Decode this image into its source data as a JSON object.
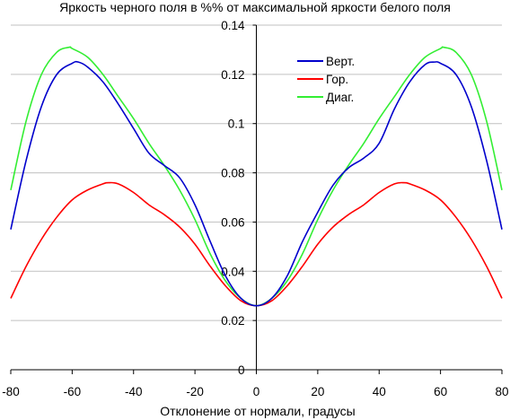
{
  "chart_data": {
    "type": "line",
    "title": "Яркость черного поля в %% от максимальной яркости белого поля",
    "xlabel": "Отклонение от нормали, градусы",
    "ylabel": "",
    "xlim": [
      -80,
      80
    ],
    "ylim": [
      0,
      0.14
    ],
    "x_ticks": [
      "-80",
      "-60",
      "-40",
      "-20",
      "0",
      "20",
      "40",
      "60",
      "80"
    ],
    "y_ticks": [
      "0",
      "0.02",
      "0.04",
      "0.06",
      "0.08",
      "0.1",
      "0.12",
      "0.14"
    ],
    "grid": "horizontal",
    "legend_position": "top-right",
    "series": [
      {
        "name": "Верт.",
        "color": "#0000cc",
        "x": [
          -80,
          -75,
          -70,
          -65,
          -60,
          -58,
          -55,
          -50,
          -45,
          -40,
          -35,
          -30,
          -25,
          -20,
          -15,
          -10,
          -5,
          0,
          5,
          10,
          15,
          20,
          25,
          30,
          35,
          40,
          45,
          50,
          55,
          58,
          60,
          65,
          70,
          75,
          80
        ],
        "y": [
          0.057,
          0.085,
          0.107,
          0.12,
          0.1245,
          0.125,
          0.123,
          0.117,
          0.108,
          0.098,
          0.088,
          0.083,
          0.078,
          0.067,
          0.052,
          0.038,
          0.029,
          0.026,
          0.029,
          0.038,
          0.052,
          0.064,
          0.075,
          0.082,
          0.086,
          0.092,
          0.106,
          0.117,
          0.124,
          0.125,
          0.1245,
          0.12,
          0.107,
          0.085,
          0.057
        ]
      },
      {
        "name": "Гор.",
        "color": "#ff0000",
        "x": [
          -80,
          -75,
          -70,
          -65,
          -60,
          -55,
          -50,
          -48,
          -45,
          -40,
          -35,
          -30,
          -25,
          -20,
          -15,
          -10,
          -5,
          0,
          5,
          10,
          15,
          20,
          25,
          30,
          35,
          40,
          45,
          48,
          50,
          55,
          60,
          65,
          70,
          75,
          80
        ],
        "y": [
          0.029,
          0.042,
          0.053,
          0.062,
          0.069,
          0.073,
          0.0755,
          0.076,
          0.0755,
          0.072,
          0.067,
          0.063,
          0.058,
          0.051,
          0.042,
          0.034,
          0.028,
          0.026,
          0.028,
          0.034,
          0.042,
          0.051,
          0.058,
          0.063,
          0.067,
          0.072,
          0.0755,
          0.076,
          0.0755,
          0.073,
          0.069,
          0.062,
          0.053,
          0.042,
          0.029
        ]
      },
      {
        "name": "Диаг.",
        "color": "#33ee33",
        "x": [
          -80,
          -75,
          -70,
          -65,
          -61,
          -60,
          -55,
          -50,
          -45,
          -40,
          -35,
          -30,
          -25,
          -20,
          -15,
          -10,
          -5,
          0,
          5,
          10,
          15,
          20,
          25,
          30,
          35,
          40,
          45,
          50,
          55,
          60,
          61,
          65,
          70,
          75,
          80
        ],
        "y": [
          0.073,
          0.101,
          0.12,
          0.129,
          0.131,
          0.1305,
          0.127,
          0.12,
          0.111,
          0.102,
          0.092,
          0.083,
          0.073,
          0.061,
          0.047,
          0.036,
          0.029,
          0.026,
          0.029,
          0.036,
          0.047,
          0.061,
          0.073,
          0.083,
          0.092,
          0.102,
          0.111,
          0.12,
          0.127,
          0.1305,
          0.131,
          0.129,
          0.12,
          0.101,
          0.073
        ]
      }
    ]
  }
}
